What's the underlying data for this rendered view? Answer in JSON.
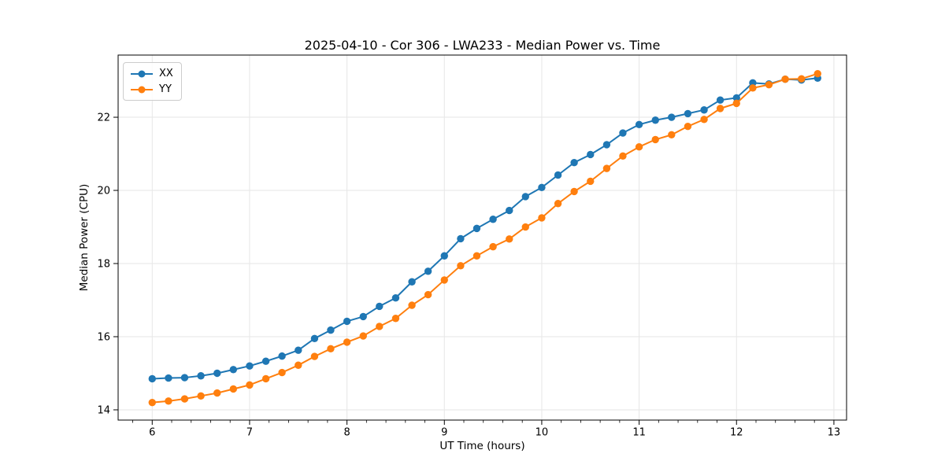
{
  "chart_data": {
    "type": "line",
    "title": "2025-04-10 - Cor 306 - LWA233 - Median Power vs. Time",
    "xlabel": "UT Time (hours)",
    "ylabel": "Median Power (CPU)",
    "xlim": [
      5.65,
      13.13
    ],
    "ylim": [
      13.72,
      23.7
    ],
    "x_major_ticks": [
      6,
      7,
      8,
      9,
      10,
      11,
      12,
      13
    ],
    "x_minor_step": 0.2,
    "y_major_ticks": [
      14,
      16,
      18,
      20,
      22
    ],
    "grid": "major",
    "grid_color": "#e6e6e6",
    "legend_position": "upper-left",
    "x": [
      6.0,
      6.167,
      6.333,
      6.5,
      6.667,
      6.833,
      7.0,
      7.167,
      7.333,
      7.5,
      7.667,
      7.833,
      8.0,
      8.167,
      8.333,
      8.5,
      8.667,
      8.833,
      9.0,
      9.167,
      9.333,
      9.5,
      9.667,
      9.833,
      10.0,
      10.167,
      10.333,
      10.5,
      10.667,
      10.833,
      11.0,
      11.167,
      11.333,
      11.5,
      11.667,
      11.833,
      12.0,
      12.167,
      12.333,
      12.5,
      12.667,
      12.833
    ],
    "series": [
      {
        "name": "XX",
        "color": "#1f77b4",
        "values": [
          14.85,
          14.87,
          14.88,
          14.93,
          15.0,
          15.1,
          15.2,
          15.33,
          15.47,
          15.63,
          15.95,
          16.18,
          16.42,
          16.55,
          16.83,
          17.06,
          17.5,
          17.79,
          18.21,
          18.68,
          18.96,
          19.21,
          19.45,
          19.83,
          20.08,
          20.42,
          20.76,
          20.98,
          21.25,
          21.57,
          21.8,
          21.92,
          22.0,
          22.1,
          22.2,
          22.47,
          22.53,
          22.94,
          22.91,
          23.04,
          23.02,
          23.07
        ]
      },
      {
        "name": "YY",
        "color": "#ff7f0e",
        "values": [
          14.2,
          14.24,
          14.3,
          14.38,
          14.46,
          14.57,
          14.68,
          14.85,
          15.02,
          15.22,
          15.46,
          15.67,
          15.85,
          16.02,
          16.28,
          16.5,
          16.86,
          17.15,
          17.55,
          17.94,
          18.21,
          18.46,
          18.67,
          19.0,
          19.25,
          19.64,
          19.97,
          20.25,
          20.6,
          20.94,
          21.19,
          21.39,
          21.52,
          21.75,
          21.94,
          22.24,
          22.38,
          22.8,
          22.89,
          23.04,
          23.05,
          23.19
        ]
      }
    ]
  }
}
